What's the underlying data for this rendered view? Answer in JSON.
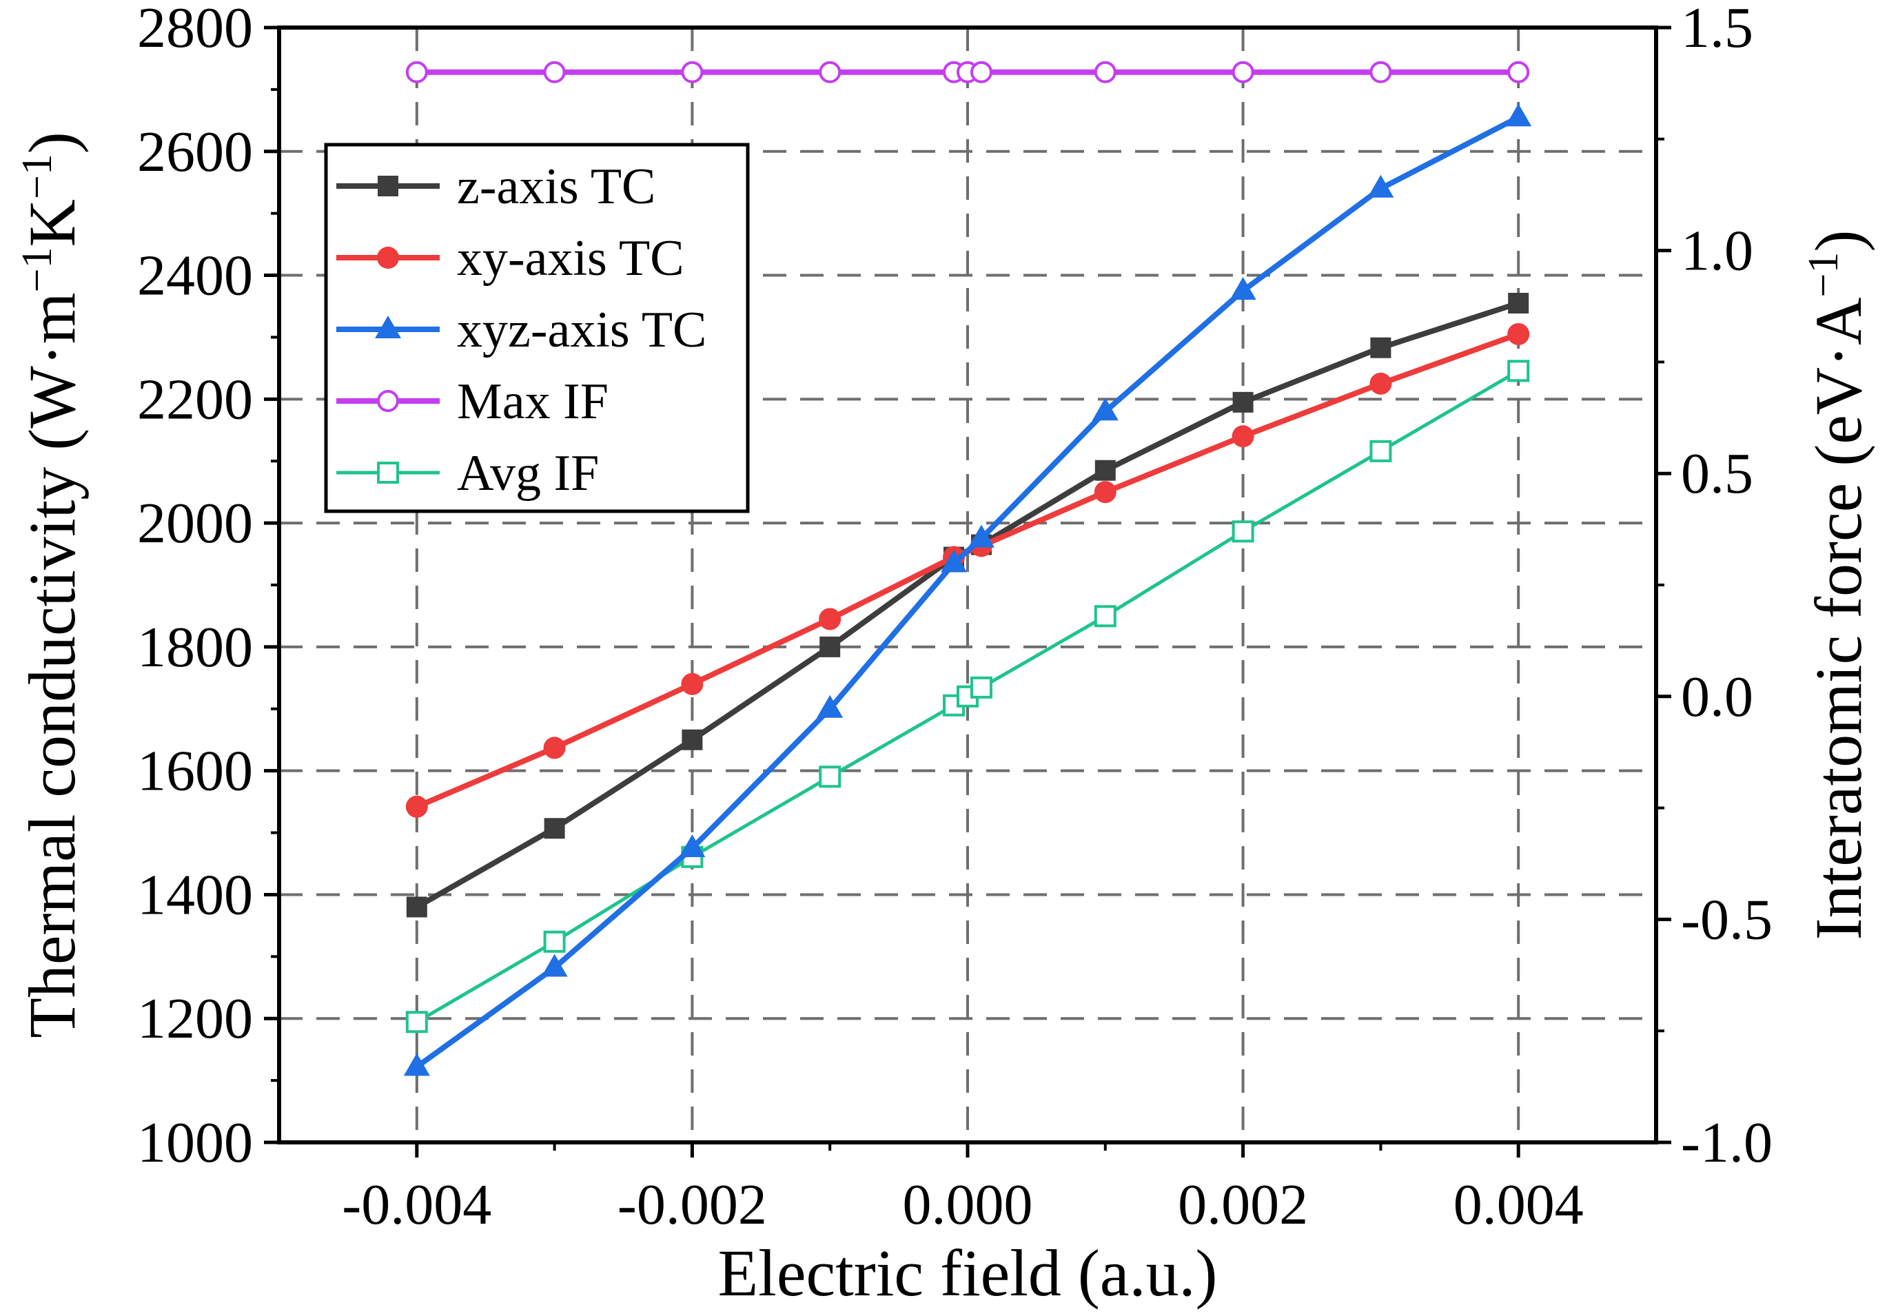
{
  "chart_data": {
    "type": "line",
    "title": "",
    "xlabel": "Electric field (a.u.)",
    "ylabel": "Thermal conductivity (W·m",
    "ylabel_sup1": "−1",
    "ylabel_mid": "K",
    "ylabel_sup2": "−1",
    "ylabel_end": ")",
    "y2label": "Interatomic force (eV·A",
    "y2label_sup": "−1",
    "y2label_end": ")",
    "xlim": [
      -0.005,
      0.005
    ],
    "ylim": [
      1000,
      2800
    ],
    "y2lim": [
      -1.0,
      1.5
    ],
    "xticks": [
      -0.004,
      -0.002,
      0.0,
      0.002,
      0.004
    ],
    "xtick_labels": [
      "-0.004",
      "-0.002",
      "0.000",
      "0.002",
      "0.004"
    ],
    "yticks": [
      1000,
      1200,
      1400,
      1600,
      1800,
      2000,
      2200,
      2400,
      2600,
      2800
    ],
    "ytick_labels": [
      "1000",
      "1200",
      "1400",
      "1600",
      "1800",
      "2000",
      "2200",
      "2400",
      "2600",
      "2800"
    ],
    "y2ticks": [
      -1.0,
      -0.5,
      0.0,
      0.5,
      1.0,
      1.5
    ],
    "y2tick_labels": [
      "-1.0",
      "-0.5",
      "0.0",
      "0.5",
      "1.0",
      "1.5"
    ],
    "grid": true,
    "legend_position": "top-left",
    "series": [
      {
        "name": "z-axis TC",
        "axis": "left",
        "color": "#3d3d3d",
        "marker": "square-filled",
        "x": [
          -0.004,
          -0.003,
          -0.002,
          -0.001,
          -0.0001,
          0.0001,
          0.001,
          0.002,
          0.003,
          0.004
        ],
        "values": [
          1380,
          1507,
          1650,
          1800,
          1945,
          1965,
          2085,
          2195,
          2283,
          2355
        ]
      },
      {
        "name": "xy-axis TC",
        "axis": "left",
        "color": "#ee3b3b",
        "marker": "circle-filled",
        "x": [
          -0.004,
          -0.003,
          -0.002,
          -0.001,
          -0.0001,
          0.0001,
          0.001,
          0.002,
          0.003,
          0.004
        ],
        "values": [
          1542,
          1637,
          1740,
          1845,
          1945,
          1963,
          2050,
          2140,
          2225,
          2305
        ]
      },
      {
        "name": "xyz-axis TC",
        "axis": "left",
        "color": "#1f6fe5",
        "marker": "triangle-filled",
        "x": [
          -0.004,
          -0.003,
          -0.002,
          -0.001,
          -0.0001,
          0.0001,
          0.001,
          0.002,
          0.003,
          0.004
        ],
        "values": [
          1122,
          1282,
          1475,
          1700,
          1935,
          1975,
          2180,
          2375,
          2540,
          2655
        ]
      },
      {
        "name": "Max IF",
        "axis": "right",
        "color": "#c43ef0",
        "marker": "circle-open",
        "x": [
          -0.004,
          -0.003,
          -0.002,
          -0.001,
          -0.0001,
          0.0,
          0.0001,
          0.001,
          0.002,
          0.003,
          0.004
        ],
        "values": [
          1.4,
          1.4,
          1.4,
          1.4,
          1.4,
          1.4,
          1.4,
          1.4,
          1.4,
          1.4,
          1.4
        ]
      },
      {
        "name": "Avg IF",
        "axis": "right",
        "color": "#1fc48a",
        "marker": "square-open",
        "x": [
          -0.004,
          -0.003,
          -0.002,
          -0.001,
          -0.0001,
          0.0,
          0.0001,
          0.001,
          0.002,
          0.003,
          0.004
        ],
        "values": [
          -0.73,
          -0.55,
          -0.36,
          -0.18,
          -0.02,
          0.0,
          0.02,
          0.18,
          0.37,
          0.55,
          0.73
        ]
      }
    ]
  }
}
